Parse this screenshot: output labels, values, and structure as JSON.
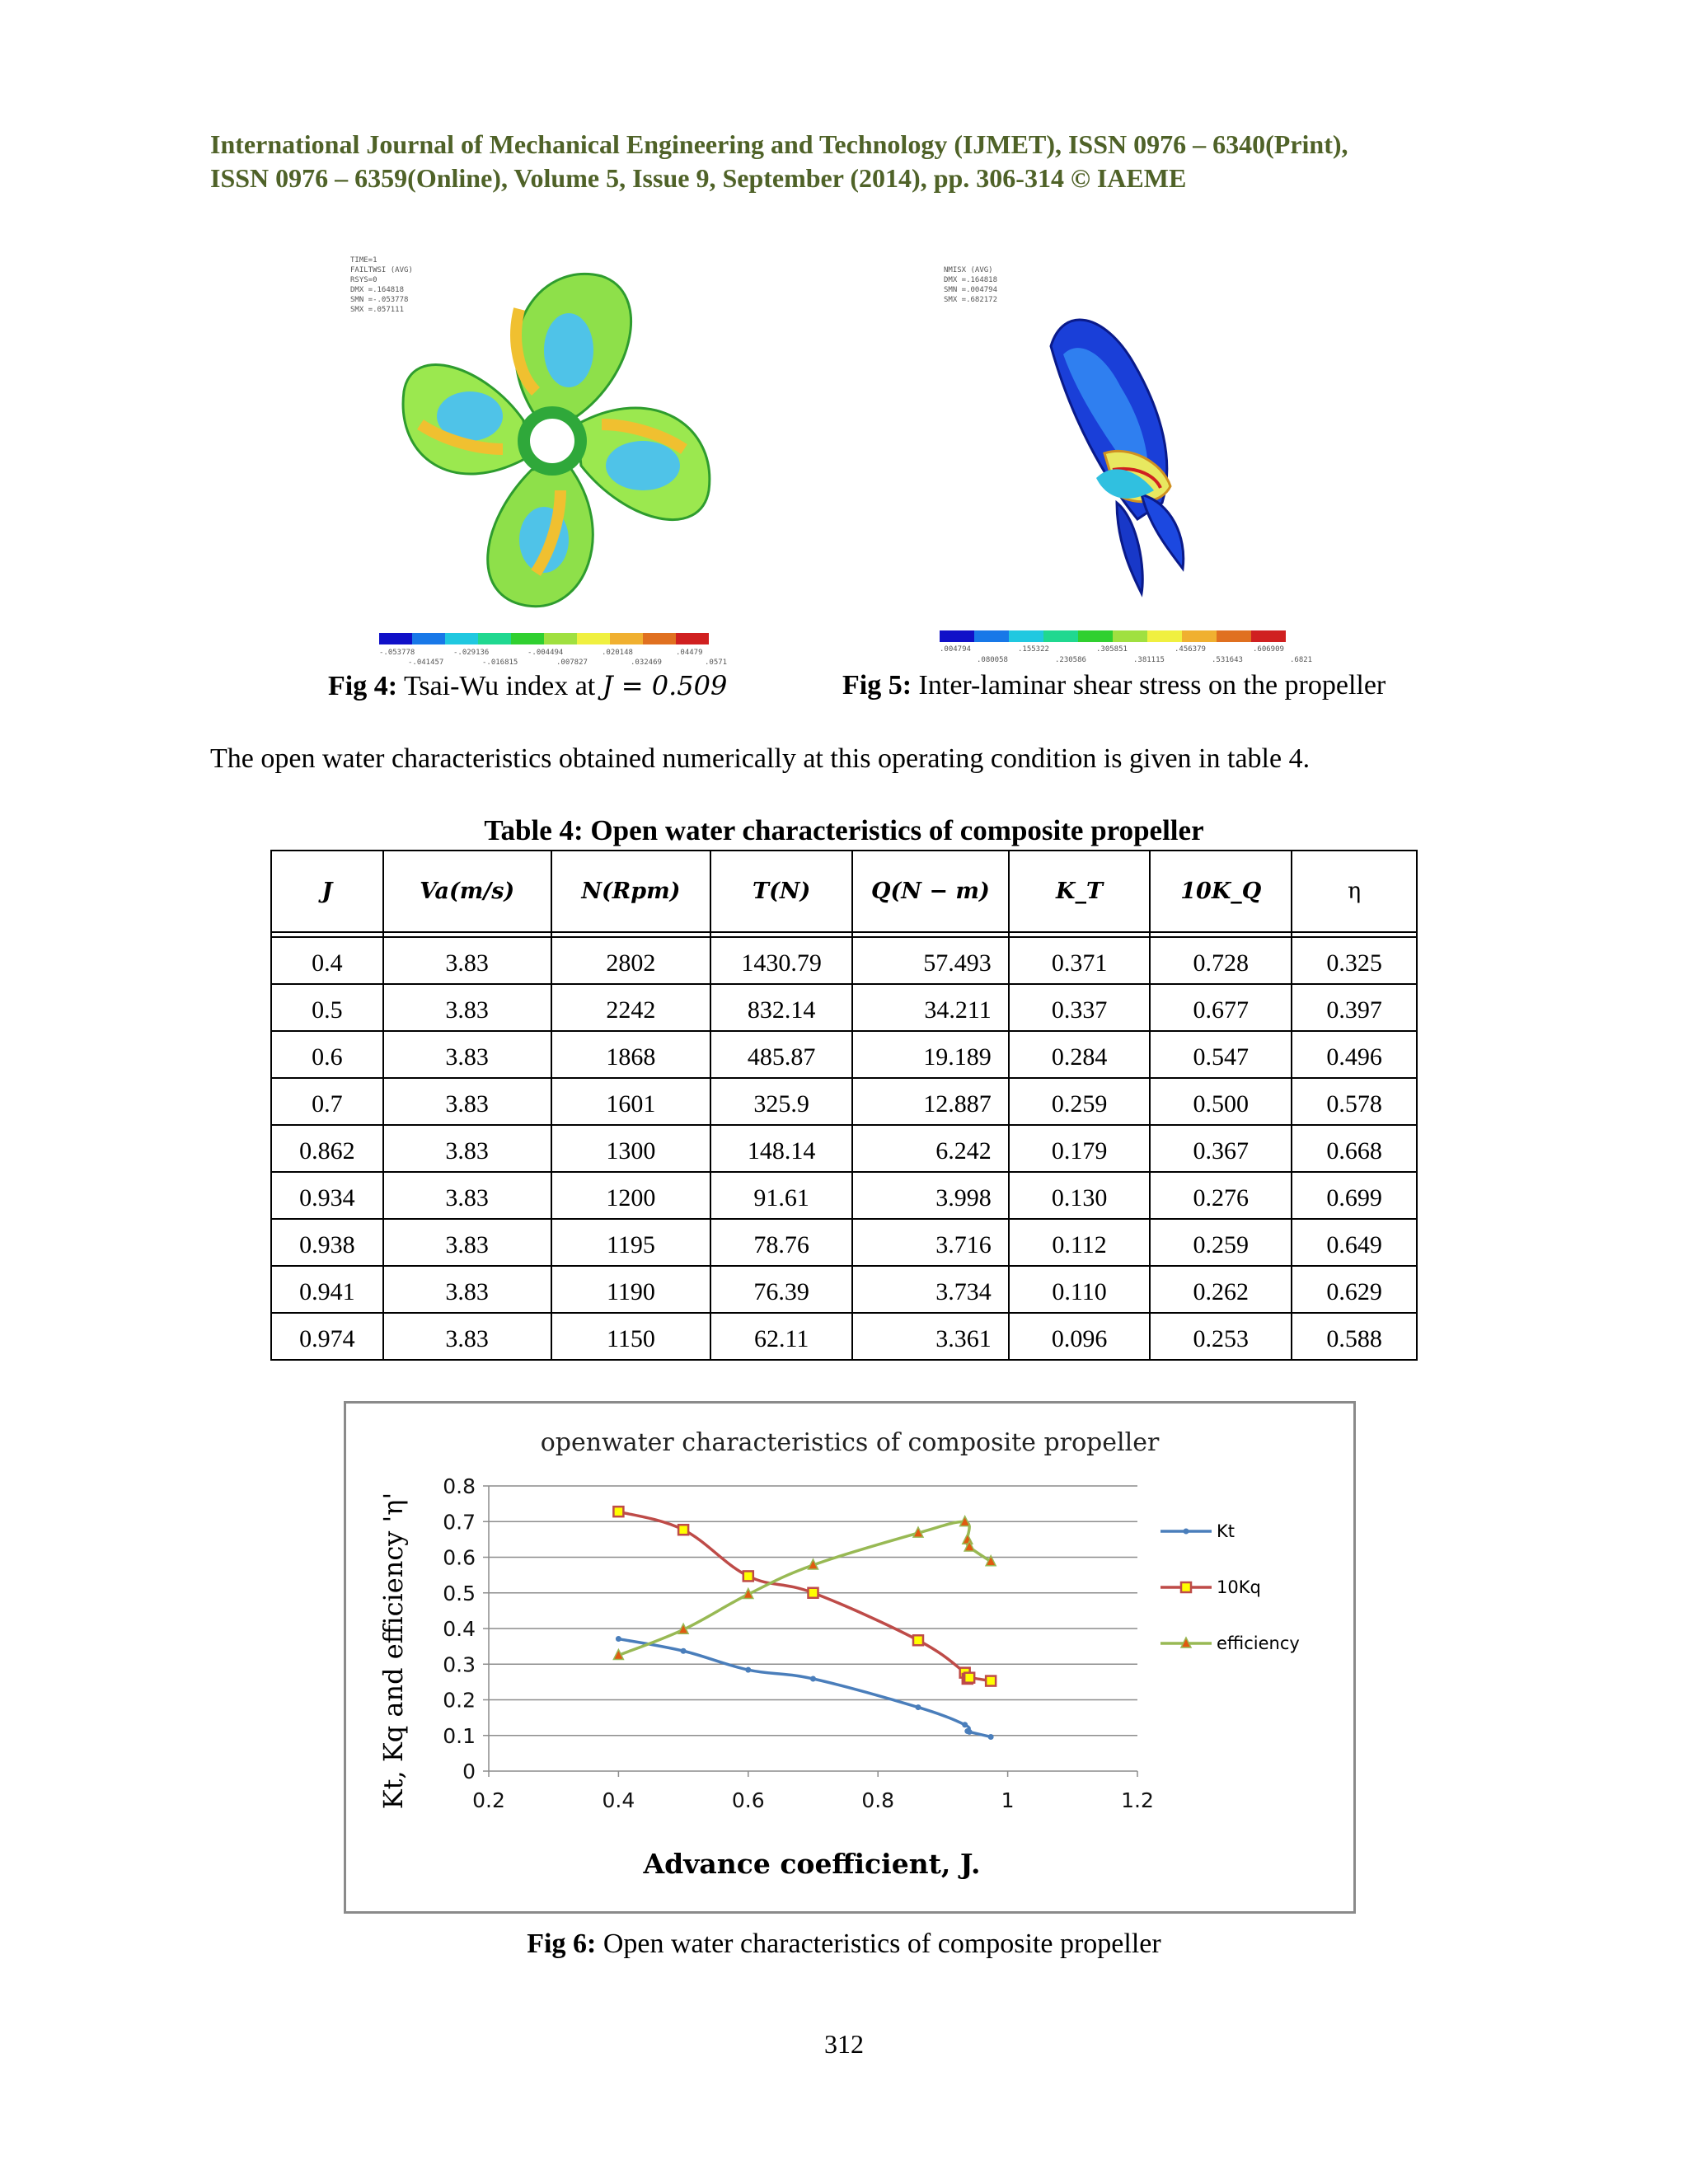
{
  "header": {
    "line1": "International Journal of Mechanical Engineering and Technology (IJMET), ISSN 0976 – 6340(Print),",
    "line2": "ISSN 0976 – 6359(Online), Volume 5, Issue 9, September (2014), pp. 306-314 © IAEME"
  },
  "fig4": {
    "label": "Fig 4:",
    "text": "Tsai-Wu index at ",
    "math": "J = 0.509",
    "info": [
      "TIME=1",
      "FAILTWSI (AVG)",
      "RSYS=0",
      "DMX =.164818",
      "SMN =-.053778",
      "SMX =.057111"
    ],
    "legend_top": [
      "-.053778",
      "-.029136",
      "-.004494",
      ".020148",
      ".04479"
    ],
    "legend_bottom": [
      "-.041457",
      "-.016815",
      ".007827",
      ".032469",
      ".0571"
    ]
  },
  "fig5": {
    "label": "Fig 5:",
    "text": "Inter-laminar shear stress on the propeller",
    "info": [
      "NMISX  (AVG)",
      "DMX =.164818",
      "SMN =.004794",
      "SMX =.682172"
    ],
    "legend_top": [
      ".004794",
      ".155322",
      ".305851",
      ".456379",
      ".606909"
    ],
    "legend_bottom": [
      ".080058",
      ".230586",
      ".381115",
      ".531643",
      ".6821"
    ]
  },
  "paragraph": "The open water characteristics obtained numerically at this operating condition is given in table 4.",
  "table": {
    "title": "Table 4: Open water characteristics of composite propeller",
    "headers": [
      "J",
      "Va(m/s)",
      "N(Rpm)",
      "T(N)",
      "Q(N − m)",
      "K_T",
      "10K_Q",
      "η"
    ],
    "rows": [
      [
        "0.4",
        "3.83",
        "2802",
        "1430.79",
        "57.493",
        "0.371",
        "0.728",
        "0.325"
      ],
      [
        "0.5",
        "3.83",
        "2242",
        "832.14",
        "34.211",
        "0.337",
        "0.677",
        "0.397"
      ],
      [
        "0.6",
        "3.83",
        "1868",
        "485.87",
        "19.189",
        "0.284",
        "0.547",
        "0.496"
      ],
      [
        "0.7",
        "3.83",
        "1601",
        "325.9",
        "12.887",
        "0.259",
        "0.500",
        "0.578"
      ],
      [
        "0.862",
        "3.83",
        "1300",
        "148.14",
        "6.242",
        "0.179",
        "0.367",
        "0.668"
      ],
      [
        "0.934",
        "3.83",
        "1200",
        "91.61",
        "3.998",
        "0.130",
        "0.276",
        "0.699"
      ],
      [
        "0.938",
        "3.83",
        "1195",
        "78.76",
        "3.716",
        "0.112",
        "0.259",
        "0.649"
      ],
      [
        "0.941",
        "3.83",
        "1190",
        "76.39",
        "3.734",
        "0.110",
        "0.262",
        "0.629"
      ],
      [
        "0.974",
        "3.83",
        "1150",
        "62.11",
        "3.361",
        "0.096",
        "0.253",
        "0.588"
      ]
    ]
  },
  "chart_data": {
    "type": "line",
    "title": "openwater characteristics of composite propeller",
    "xlabel": "Advance coefficient, J.",
    "ylabel": "Kt, Kq and efficiency 'η'",
    "xlim": [
      0.2,
      1.2
    ],
    "ylim": [
      0,
      0.8
    ],
    "xticks": [
      "0.2",
      "0.4",
      "0.6",
      "0.8",
      "1",
      "1.2"
    ],
    "yticks": [
      "0",
      "0.1",
      "0.2",
      "0.3",
      "0.4",
      "0.5",
      "0.6",
      "0.7",
      "0.8"
    ],
    "grid": "horizontal",
    "legend_position": "right",
    "x": [
      0.4,
      0.5,
      0.6,
      0.7,
      0.862,
      0.934,
      0.938,
      0.941,
      0.974
    ],
    "series": [
      {
        "name": "Kt",
        "color": "#4a7ebb",
        "marker": "dot",
        "values": [
          0.371,
          0.337,
          0.284,
          0.259,
          0.179,
          0.13,
          0.112,
          0.11,
          0.096
        ]
      },
      {
        "name": "10Kq",
        "color": "#be4b48",
        "marker": "square",
        "values": [
          0.728,
          0.677,
          0.547,
          0.5,
          0.367,
          0.276,
          0.259,
          0.262,
          0.253
        ]
      },
      {
        "name": "efficiency",
        "color": "#98b954",
        "marker": "triangle",
        "values": [
          0.325,
          0.397,
          0.496,
          0.578,
          0.668,
          0.699,
          0.649,
          0.629,
          0.588
        ]
      }
    ]
  },
  "fig6": {
    "label": "Fig 6:",
    "text": "Open water characteristics of composite propeller"
  },
  "page_number": "312"
}
